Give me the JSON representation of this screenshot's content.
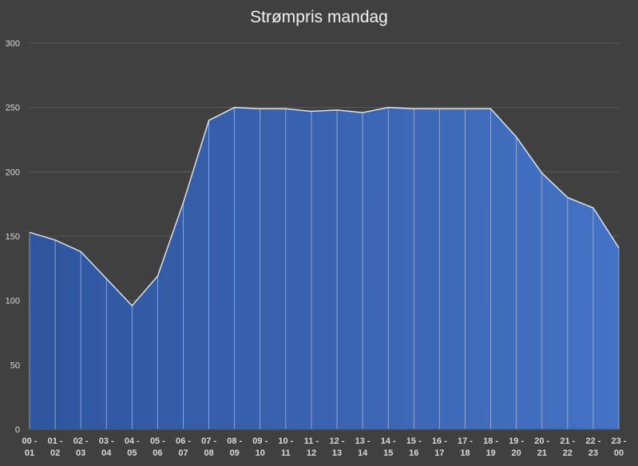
{
  "chart_data": {
    "type": "area",
    "title": "Strømpris mandag",
    "xlabel": "",
    "ylabel": "",
    "ylim": [
      0,
      300
    ],
    "yticks": [
      0,
      50,
      100,
      150,
      200,
      250,
      300
    ],
    "grid": true,
    "legend": "none",
    "categories": [
      [
        "00 -",
        "01"
      ],
      [
        "01 -",
        "02"
      ],
      [
        "02 -",
        "03"
      ],
      [
        "03 -",
        "04"
      ],
      [
        "04 -",
        "05"
      ],
      [
        "05 -",
        "06"
      ],
      [
        "06 -",
        "07"
      ],
      [
        "07 -",
        "08"
      ],
      [
        "08 -",
        "09"
      ],
      [
        "09 -",
        "10"
      ],
      [
        "10 -",
        "11"
      ],
      [
        "11 -",
        "12"
      ],
      [
        "12 -",
        "13"
      ],
      [
        "13 -",
        "14"
      ],
      [
        "14 -",
        "15"
      ],
      [
        "15 -",
        "16"
      ],
      [
        "16 -",
        "17"
      ],
      [
        "17 -",
        "18"
      ],
      [
        "18 -",
        "19"
      ],
      [
        "19 -",
        "20"
      ],
      [
        "20 -",
        "21"
      ],
      [
        "21 -",
        "22"
      ],
      [
        "22 -",
        "23"
      ],
      [
        "23 -",
        "00"
      ]
    ],
    "values": [
      153,
      147,
      138,
      117,
      96,
      119,
      176,
      240,
      250,
      249,
      249,
      247,
      248,
      246,
      250,
      249,
      249,
      249,
      249,
      227,
      199,
      180,
      172,
      141
    ]
  },
  "colors": {
    "background": "#404040",
    "fill_start": "#2f559e",
    "fill_end": "#4472c4",
    "line": "#d9e1f2",
    "grid": "#595959",
    "text": "#d9d9d9",
    "title": "#f2f2f2"
  }
}
